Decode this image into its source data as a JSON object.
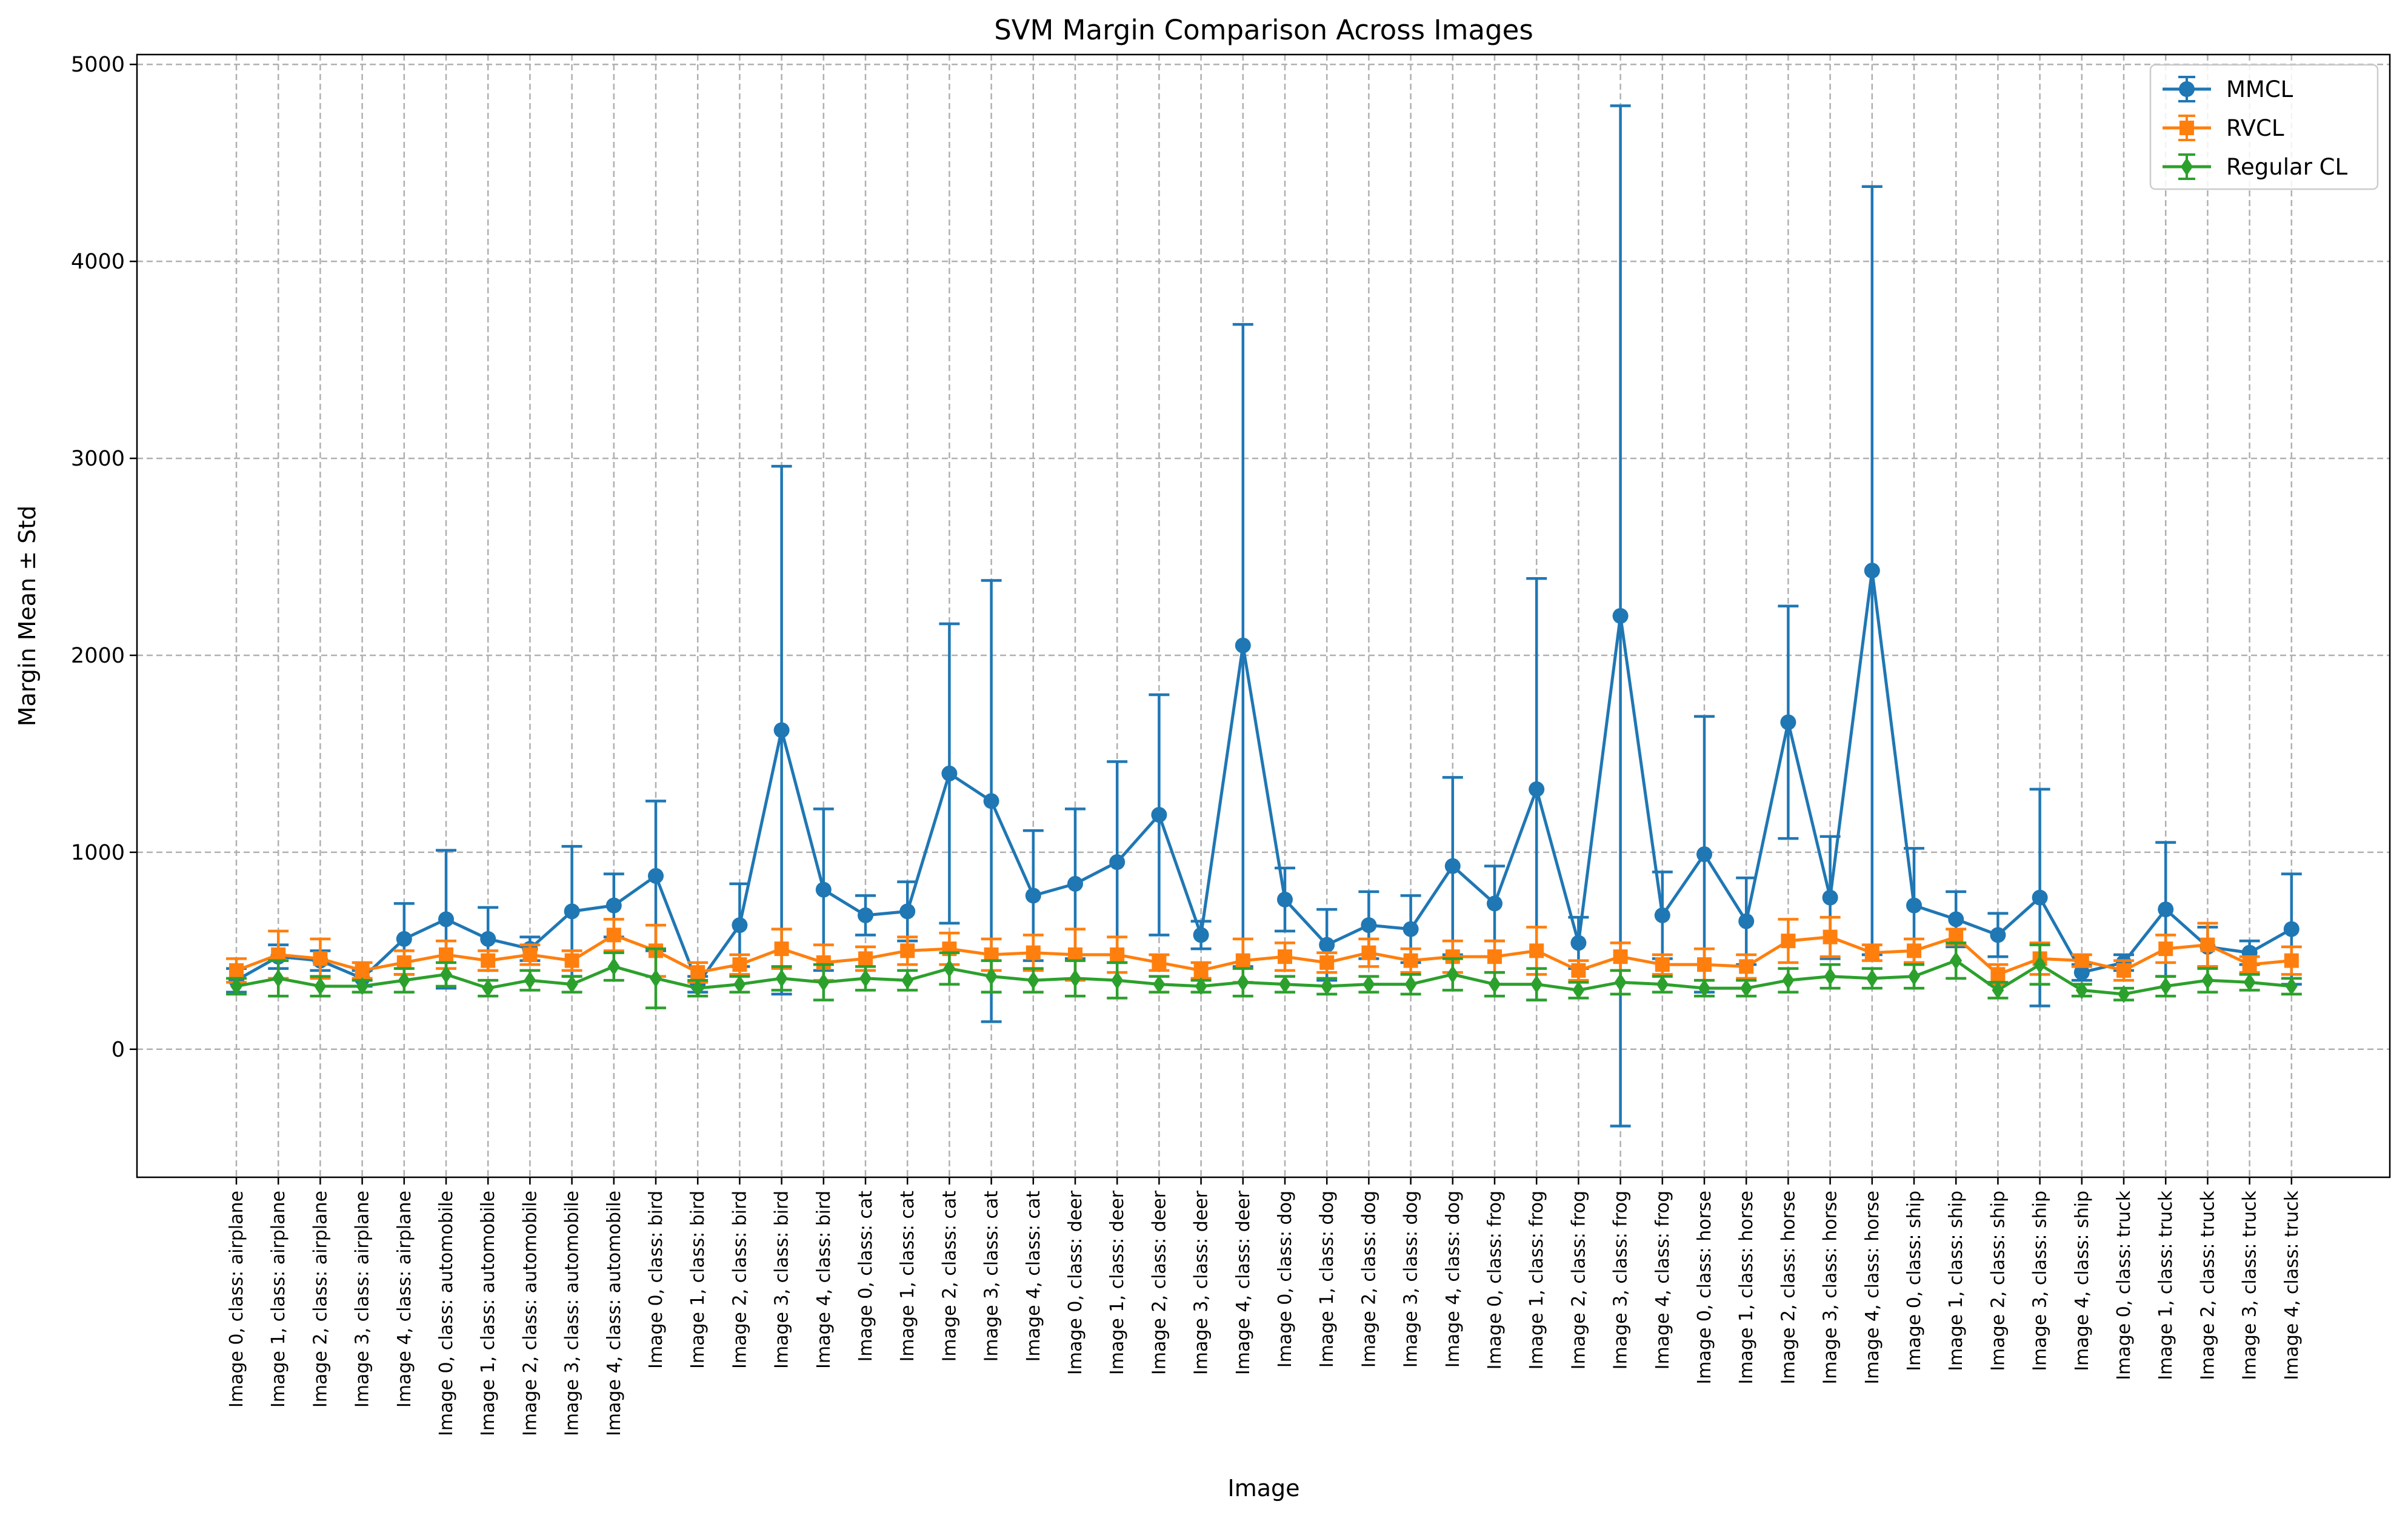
{
  "chart_data": {
    "type": "line",
    "title": "SVM Margin Comparison Across Images",
    "xlabel": "Image",
    "ylabel": "Margin Mean ± Std",
    "ylim": [
      -650,
      5050
    ],
    "yticks": [
      0,
      1000,
      2000,
      3000,
      4000,
      5000
    ],
    "grid": true,
    "legend_position": "top-right",
    "error_bars": true,
    "categories": [
      "Image 0, class: airplane",
      "Image 1, class: airplane",
      "Image 2, class: airplane",
      "Image 3, class: airplane",
      "Image 4, class: airplane",
      "Image 0, class: automobile",
      "Image 1, class: automobile",
      "Image 2, class: automobile",
      "Image 3, class: automobile",
      "Image 4, class: automobile",
      "Image 0, class: bird",
      "Image 1, class: bird",
      "Image 2, class: bird",
      "Image 3, class: bird",
      "Image 4, class: bird",
      "Image 0, class: cat",
      "Image 1, class: cat",
      "Image 2, class: cat",
      "Image 3, class: cat",
      "Image 4, class: cat",
      "Image 0, class: deer",
      "Image 1, class: deer",
      "Image 2, class: deer",
      "Image 3, class: deer",
      "Image 4, class: deer",
      "Image 0, class: dog",
      "Image 1, class: dog",
      "Image 2, class: dog",
      "Image 3, class: dog",
      "Image 4, class: dog",
      "Image 0, class: frog",
      "Image 1, class: frog",
      "Image 2, class: frog",
      "Image 3, class: frog",
      "Image 4, class: frog",
      "Image 0, class: horse",
      "Image 1, class: horse",
      "Image 2, class: horse",
      "Image 3, class: horse",
      "Image 4, class: horse",
      "Image 0, class: ship",
      "Image 1, class: ship",
      "Image 2, class: ship",
      "Image 3, class: ship",
      "Image 4, class: ship",
      "Image 0, class: truck",
      "Image 1, class: truck",
      "Image 2, class: truck",
      "Image 3, class: truck",
      "Image 4, class: truck"
    ],
    "series": [
      {
        "name": "MMCL",
        "color": "#1f77b4",
        "marker": "circle",
        "values": [
          350,
          470,
          450,
          360,
          560,
          660,
          560,
          510,
          700,
          730,
          880,
          330,
          630,
          1620,
          810,
          680,
          700,
          1400,
          1260,
          780,
          840,
          950,
          1190,
          580,
          2050,
          760,
          530,
          630,
          610,
          930,
          740,
          1320,
          540,
          2200,
          680,
          990,
          650,
          1660,
          770,
          2430,
          730,
          660,
          580,
          770,
          390,
          440,
          710,
          520,
          490,
          610
        ],
        "std": [
          60,
          60,
          50,
          40,
          180,
          350,
          160,
          60,
          330,
          160,
          380,
          40,
          210,
          1340,
          410,
          100,
          150,
          760,
          1120,
          330,
          380,
          510,
          610,
          70,
          1630,
          160,
          180,
          170,
          170,
          450,
          190,
          1070,
          130,
          2590,
          220,
          700,
          220,
          590,
          310,
          1950,
          290,
          140,
          110,
          550,
          40,
          40,
          340,
          100,
          60,
          280
        ]
      },
      {
        "name": "RVCL",
        "color": "#ff7f0e",
        "marker": "square",
        "values": [
          400,
          480,
          460,
          400,
          440,
          480,
          450,
          480,
          450,
          580,
          500,
          390,
          430,
          510,
          440,
          460,
          500,
          510,
          480,
          490,
          480,
          480,
          440,
          400,
          450,
          470,
          440,
          490,
          450,
          470,
          470,
          500,
          400,
          470,
          430,
          430,
          420,
          550,
          570,
          490,
          500,
          570,
          380,
          460,
          450,
          400,
          510,
          530,
          430,
          450
        ],
        "std": [
          60,
          120,
          100,
          40,
          60,
          70,
          50,
          50,
          50,
          80,
          130,
          50,
          50,
          100,
          90,
          60,
          70,
          80,
          80,
          90,
          130,
          90,
          40,
          40,
          110,
          70,
          50,
          70,
          60,
          80,
          80,
          120,
          50,
          70,
          50,
          80,
          60,
          110,
          100,
          40,
          60,
          40,
          50,
          80,
          30,
          50,
          70,
          110,
          40,
          70
        ]
      },
      {
        "name": "Regular CL",
        "color": "#2ca02c",
        "marker": "diamond",
        "values": [
          320,
          360,
          320,
          320,
          350,
          380,
          310,
          350,
          330,
          420,
          360,
          310,
          330,
          360,
          340,
          360,
          350,
          410,
          370,
          350,
          360,
          350,
          330,
          320,
          340,
          330,
          320,
          330,
          330,
          380,
          330,
          330,
          300,
          340,
          330,
          310,
          310,
          350,
          370,
          360,
          370,
          450,
          300,
          430,
          300,
          280,
          320,
          350,
          340,
          320
        ],
        "std": [
          40,
          90,
          50,
          30,
          60,
          60,
          40,
          50,
          40,
          70,
          150,
          40,
          40,
          60,
          90,
          60,
          50,
          80,
          80,
          60,
          90,
          90,
          40,
          30,
          70,
          40,
          40,
          40,
          50,
          80,
          60,
          80,
          40,
          60,
          40,
          40,
          40,
          60,
          60,
          50,
          60,
          90,
          40,
          100,
          30,
          30,
          50,
          60,
          40,
          40
        ]
      }
    ]
  }
}
